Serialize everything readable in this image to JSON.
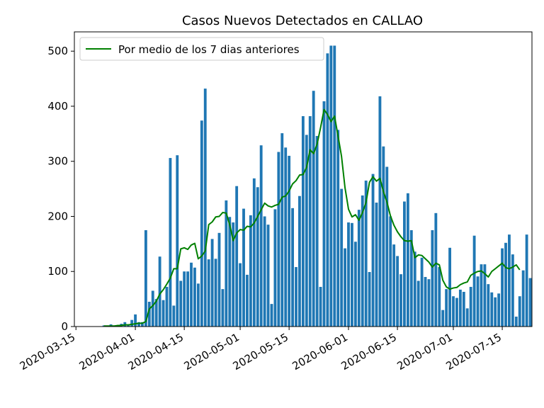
{
  "chart_data": {
    "type": "bar",
    "title": "Casos Nuevos Detectados en CALLAO",
    "xlabel": "",
    "ylabel": "",
    "start_date": "2020-03-15",
    "x_ticks": [
      "2020-03-15",
      "2020-04-01",
      "2020-04-15",
      "2020-05-01",
      "2020-05-15",
      "2020-06-01",
      "2020-06-15",
      "2020-07-01",
      "2020-07-15"
    ],
    "y_ticks": [
      0,
      100,
      200,
      300,
      400,
      500
    ],
    "ylim": [
      0,
      535
    ],
    "grid": false,
    "legend_position": "top-left",
    "colors": {
      "bars": "#1f77b4",
      "line": "#008000"
    },
    "bar_series": {
      "name": "",
      "values": [
        0,
        0,
        0,
        0,
        0,
        0,
        0,
        0,
        2,
        0,
        4,
        2,
        2,
        5,
        8,
        4,
        12,
        22,
        8,
        8,
        175,
        45,
        65,
        50,
        127,
        48,
        72,
        306,
        38,
        311,
        83,
        100,
        100,
        116,
        107,
        78,
        374,
        432,
        122,
        159,
        123,
        170,
        68,
        229,
        199,
        189,
        255,
        115,
        214,
        94,
        202,
        269,
        253,
        329,
        200,
        185,
        41,
        213,
        317,
        351,
        325,
        310,
        215,
        108,
        237,
        382,
        348,
        382,
        428,
        346,
        72,
        409,
        496,
        510,
        510,
        357,
        250,
        142,
        189,
        188,
        154,
        212,
        238,
        265,
        99,
        277,
        225,
        418,
        327,
        290,
        200,
        149,
        128,
        95,
        227,
        242,
        175,
        136,
        83,
        125,
        90,
        86,
        175,
        206,
        108,
        30,
        68,
        143,
        55,
        52,
        67,
        63,
        33,
        72,
        165,
        91,
        113,
        113,
        77,
        62,
        53,
        60,
        142,
        152,
        167,
        131,
        18,
        55,
        102,
        167,
        88
      ]
    },
    "line_series": {
      "name": "Por medio de los 7 dias anteriores",
      "values": [
        null,
        null,
        null,
        null,
        null,
        null,
        null,
        null,
        1,
        1,
        1,
        1,
        2,
        2,
        3,
        3,
        4,
        5,
        6,
        6,
        9,
        32,
        38,
        46,
        59,
        67,
        77,
        88,
        105,
        105,
        141,
        143,
        140,
        148,
        151,
        123,
        128,
        137,
        185,
        190,
        199,
        200,
        207,
        206,
        185,
        156,
        170,
        176,
        175,
        182,
        181,
        188,
        200,
        212,
        224,
        219,
        217,
        220,
        222,
        235,
        237,
        246,
        259,
        265,
        275,
        276,
        289,
        321,
        314,
        331,
        361,
        394,
        385,
        372,
        382,
        346,
        309,
        252,
        213,
        199,
        203,
        193,
        207,
        225,
        262,
        272,
        264,
        269,
        245,
        226,
        201,
        184,
        172,
        163,
        156,
        155,
        156,
        125,
        130,
        129,
        123,
        117,
        108,
        115,
        112,
        84,
        72,
        68,
        70,
        71,
        76,
        79,
        81,
        93,
        97,
        100,
        101,
        96,
        90,
        100,
        105,
        110,
        115,
        107,
        105,
        108,
        112,
        103
      ]
    }
  }
}
